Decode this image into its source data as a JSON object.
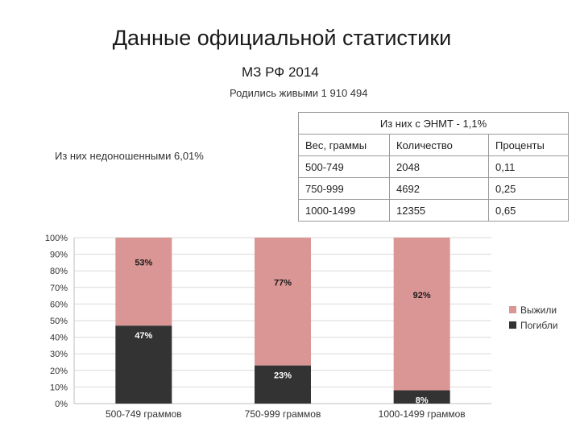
{
  "header": {
    "title": "Данные официальной статистики",
    "subtitle": "МЗ РФ 2014",
    "born_alive": "Родились живыми 1 910 494",
    "preterm": "Из них недоношенными 6,01%"
  },
  "table": {
    "caption": "Из них с ЭНМТ - 1,1%",
    "headers": [
      "Вес, граммы",
      "Количество",
      "Проценты"
    ],
    "rows": [
      [
        "500-749",
        "2048",
        "0,11"
      ],
      [
        "750-999",
        "4692",
        "0,25"
      ],
      [
        "1000-1499",
        "12355",
        "0,65"
      ]
    ]
  },
  "colors": {
    "survived": "#d99694",
    "died": "#333333",
    "grid": "#d9d9d9"
  },
  "chart_data": {
    "type": "bar",
    "stacked": true,
    "categories": [
      "500-749 граммов",
      "750-999 граммов",
      "1000-1499 граммов"
    ],
    "series": [
      {
        "name": "Погибли",
        "values": [
          47,
          23,
          8
        ],
        "labels": [
          "47%",
          "23%",
          "8%"
        ],
        "color": "#333333"
      },
      {
        "name": "Выжили",
        "values": [
          53,
          77,
          92
        ],
        "labels": [
          "53%",
          "77%",
          "92%"
        ],
        "color": "#d99694"
      }
    ],
    "ylim": [
      0,
      100
    ],
    "yticks": [
      "0%",
      "10%",
      "20%",
      "30%",
      "40%",
      "50%",
      "60%",
      "70%",
      "80%",
      "90%",
      "100%"
    ],
    "legend": [
      "Выжили",
      "Погибли"
    ],
    "legend_position": "right",
    "grid": true
  }
}
